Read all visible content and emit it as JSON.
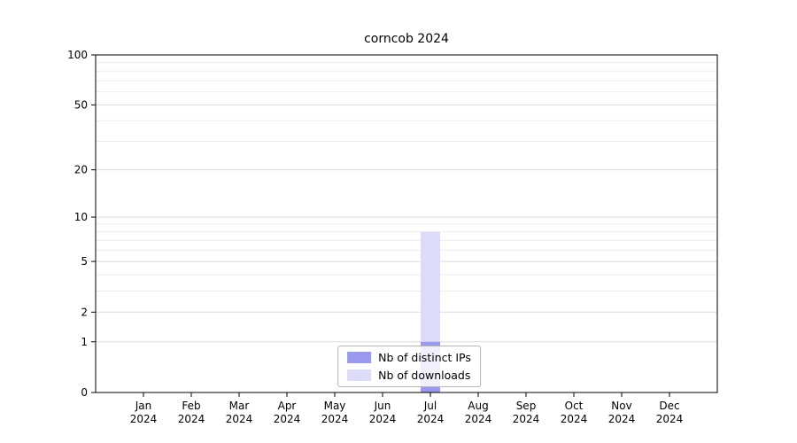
{
  "title": "corncob 2024",
  "chart_data": {
    "type": "bar",
    "title": "corncob 2024",
    "categories": [
      "Jan 2024",
      "Feb 2024",
      "Mar 2024",
      "Apr 2024",
      "May 2024",
      "Jun 2024",
      "Jul 2024",
      "Aug 2024",
      "Sep 2024",
      "Oct 2024",
      "Nov 2024",
      "Dec 2024"
    ],
    "series": [
      {
        "name": "Nb of distinct IPs",
        "color": "#9999ee",
        "values": [
          0,
          0,
          0,
          0,
          0,
          0,
          1,
          0,
          0,
          0,
          0,
          0
        ]
      },
      {
        "name": "Nb of downloads",
        "color": "#dcdcf8",
        "values": [
          0,
          0,
          0,
          0,
          0,
          0,
          8,
          0,
          0,
          0,
          0,
          0
        ]
      }
    ],
    "xlabel": "",
    "ylabel": "",
    "yticks": [
      0,
      1,
      2,
      5,
      10,
      20,
      50,
      100
    ],
    "grid_minor_values": [
      3,
      4,
      6,
      7,
      8,
      9,
      30,
      40,
      60,
      70,
      80,
      90
    ],
    "grid_major_values": [
      1,
      2,
      5,
      10,
      20,
      50,
      100
    ],
    "ylim": [
      0,
      100
    ],
    "scale": "log1p",
    "grid": "horizontal",
    "legend_position": "bottom-center"
  }
}
